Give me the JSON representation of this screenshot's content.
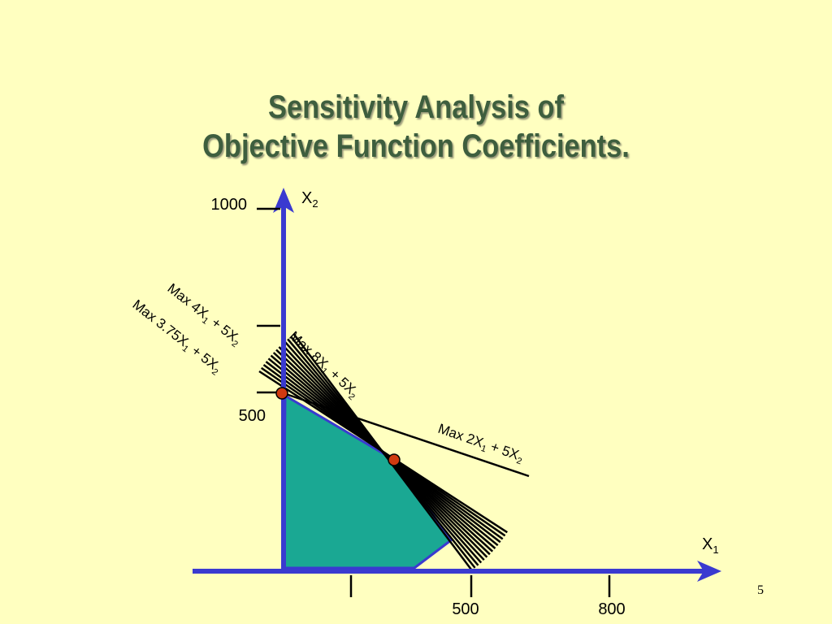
{
  "title": {
    "line1": "Sensitivity Analysis of",
    "line2": "Objective Function Coefficients."
  },
  "axes": {
    "x_label": "X",
    "x_sub": "1",
    "y_label": "X",
    "y_sub": "2",
    "x_ticks": [
      "500",
      "800"
    ],
    "y_ticks": [
      "1000",
      "500"
    ]
  },
  "objective_lines": [
    {
      "id": "max-4x1",
      "parts": [
        "Max 4X",
        "1",
        " + 5X",
        "2"
      ]
    },
    {
      "id": "max-375x1",
      "parts": [
        "Max 3.75X",
        "1",
        " + 5X",
        "2"
      ]
    },
    {
      "id": "max-8x1",
      "parts": [
        "Max 8X",
        "1",
        " + 5X",
        "2"
      ]
    },
    {
      "id": "max-2x1",
      "parts": [
        "Max 2X",
        "1",
        " + 5X",
        "2"
      ]
    }
  ],
  "slide_number": "5",
  "colors": {
    "background": "#FFFFC0",
    "title": "#3E5E3E",
    "axis": "#3A3AD0",
    "feasible_region": "#1AA893",
    "corner_point": "#D03A10",
    "line": "#000000"
  }
}
